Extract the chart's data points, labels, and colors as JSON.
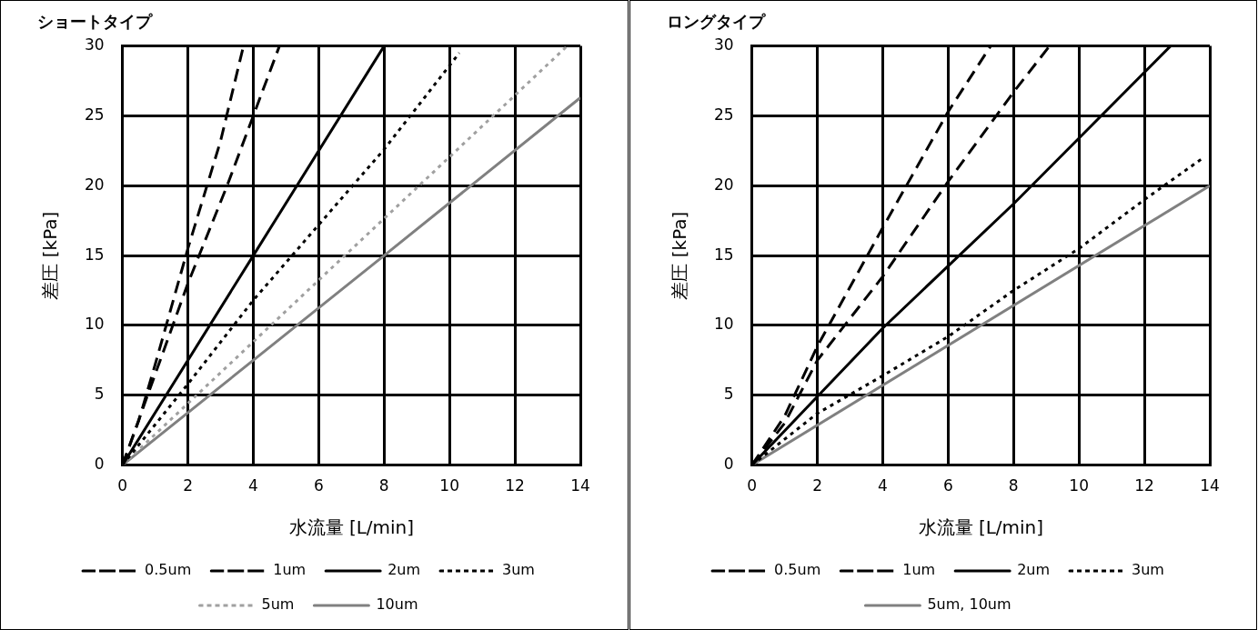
{
  "chart_data": [
    {
      "type": "line",
      "title": "ショートタイプ",
      "xlabel": "水流量 [L/min]",
      "ylabel": "差圧 [kPa]",
      "xlim": [
        0,
        14
      ],
      "xticks": [
        0,
        2,
        4,
        6,
        8,
        10,
        12,
        14
      ],
      "ylim": [
        0,
        30
      ],
      "yticks": [
        0,
        5,
        10,
        15,
        20,
        25,
        30
      ],
      "grid": true,
      "legend": "bottom",
      "marker": "none",
      "series": [
        {
          "name": "0.5um",
          "color": "#000000",
          "line_style": "dashed",
          "x": [
            0,
            0.5,
            1,
            2,
            3,
            3.7
          ],
          "values": [
            0,
            3.2,
            7.2,
            15.5,
            23.2,
            30
          ]
        },
        {
          "name": "1um",
          "color": "#000000",
          "line_style": "dashed",
          "x": [
            0,
            1,
            2,
            3.2,
            4,
            4.8
          ],
          "values": [
            0,
            6.5,
            13,
            20,
            25,
            30
          ]
        },
        {
          "name": "2um",
          "color": "#000000",
          "line_style": "solid",
          "x": [
            0,
            4,
            8
          ],
          "values": [
            0,
            15,
            30
          ]
        },
        {
          "name": "3um",
          "color": "#000000",
          "line_style": "dotted",
          "x": [
            0,
            2,
            4,
            6,
            8,
            10.3
          ],
          "values": [
            0,
            5.8,
            11.8,
            17.2,
            22.6,
            29.5
          ]
        },
        {
          "name": "5um",
          "color": "#a0a0a0",
          "line_style": "dotted",
          "x": [
            0,
            13.6
          ],
          "values": [
            0,
            30
          ]
        },
        {
          "name": "10um",
          "color": "#808080",
          "line_style": "solid",
          "x": [
            0,
            8,
            14
          ],
          "values": [
            0,
            15,
            26.3
          ]
        }
      ]
    },
    {
      "type": "line",
      "title": "ロングタイプ",
      "xlabel": "水流量 [L/min]",
      "ylabel": "差圧 [kPa]",
      "xlim": [
        0,
        14
      ],
      "xticks": [
        0,
        2,
        4,
        6,
        8,
        10,
        12,
        14
      ],
      "ylim": [
        0,
        30
      ],
      "yticks": [
        0,
        5,
        10,
        15,
        20,
        25,
        30
      ],
      "grid": true,
      "legend": "bottom",
      "marker": "none",
      "series": [
        {
          "name": "0.5um",
          "color": "#000000",
          "line_style": "dashed",
          "x": [
            0,
            1,
            2,
            4,
            6,
            7.3
          ],
          "values": [
            0,
            3.5,
            8.5,
            17,
            25.3,
            30
          ]
        },
        {
          "name": "1um",
          "color": "#000000",
          "line_style": "dashed",
          "x": [
            0,
            1,
            2,
            4,
            6,
            8,
            9.1
          ],
          "values": [
            0,
            3,
            7.5,
            13.5,
            20.3,
            26.7,
            30
          ]
        },
        {
          "name": "2um",
          "color": "#000000",
          "line_style": "solid",
          "x": [
            0,
            2,
            4,
            8,
            10,
            12.8
          ],
          "values": [
            0,
            4.9,
            9.8,
            18.7,
            23.4,
            30
          ]
        },
        {
          "name": "3um",
          "color": "#000000",
          "line_style": "dotted",
          "x": [
            0,
            2,
            4,
            6,
            8,
            10,
            12,
            13.8
          ],
          "values": [
            0,
            3.7,
            6.4,
            9.2,
            12.5,
            15.5,
            19,
            22
          ]
        },
        {
          "name": "5um, 10um",
          "color": "#808080",
          "line_style": "solid",
          "x": [
            0,
            14
          ],
          "values": [
            0,
            20
          ]
        }
      ]
    }
  ]
}
